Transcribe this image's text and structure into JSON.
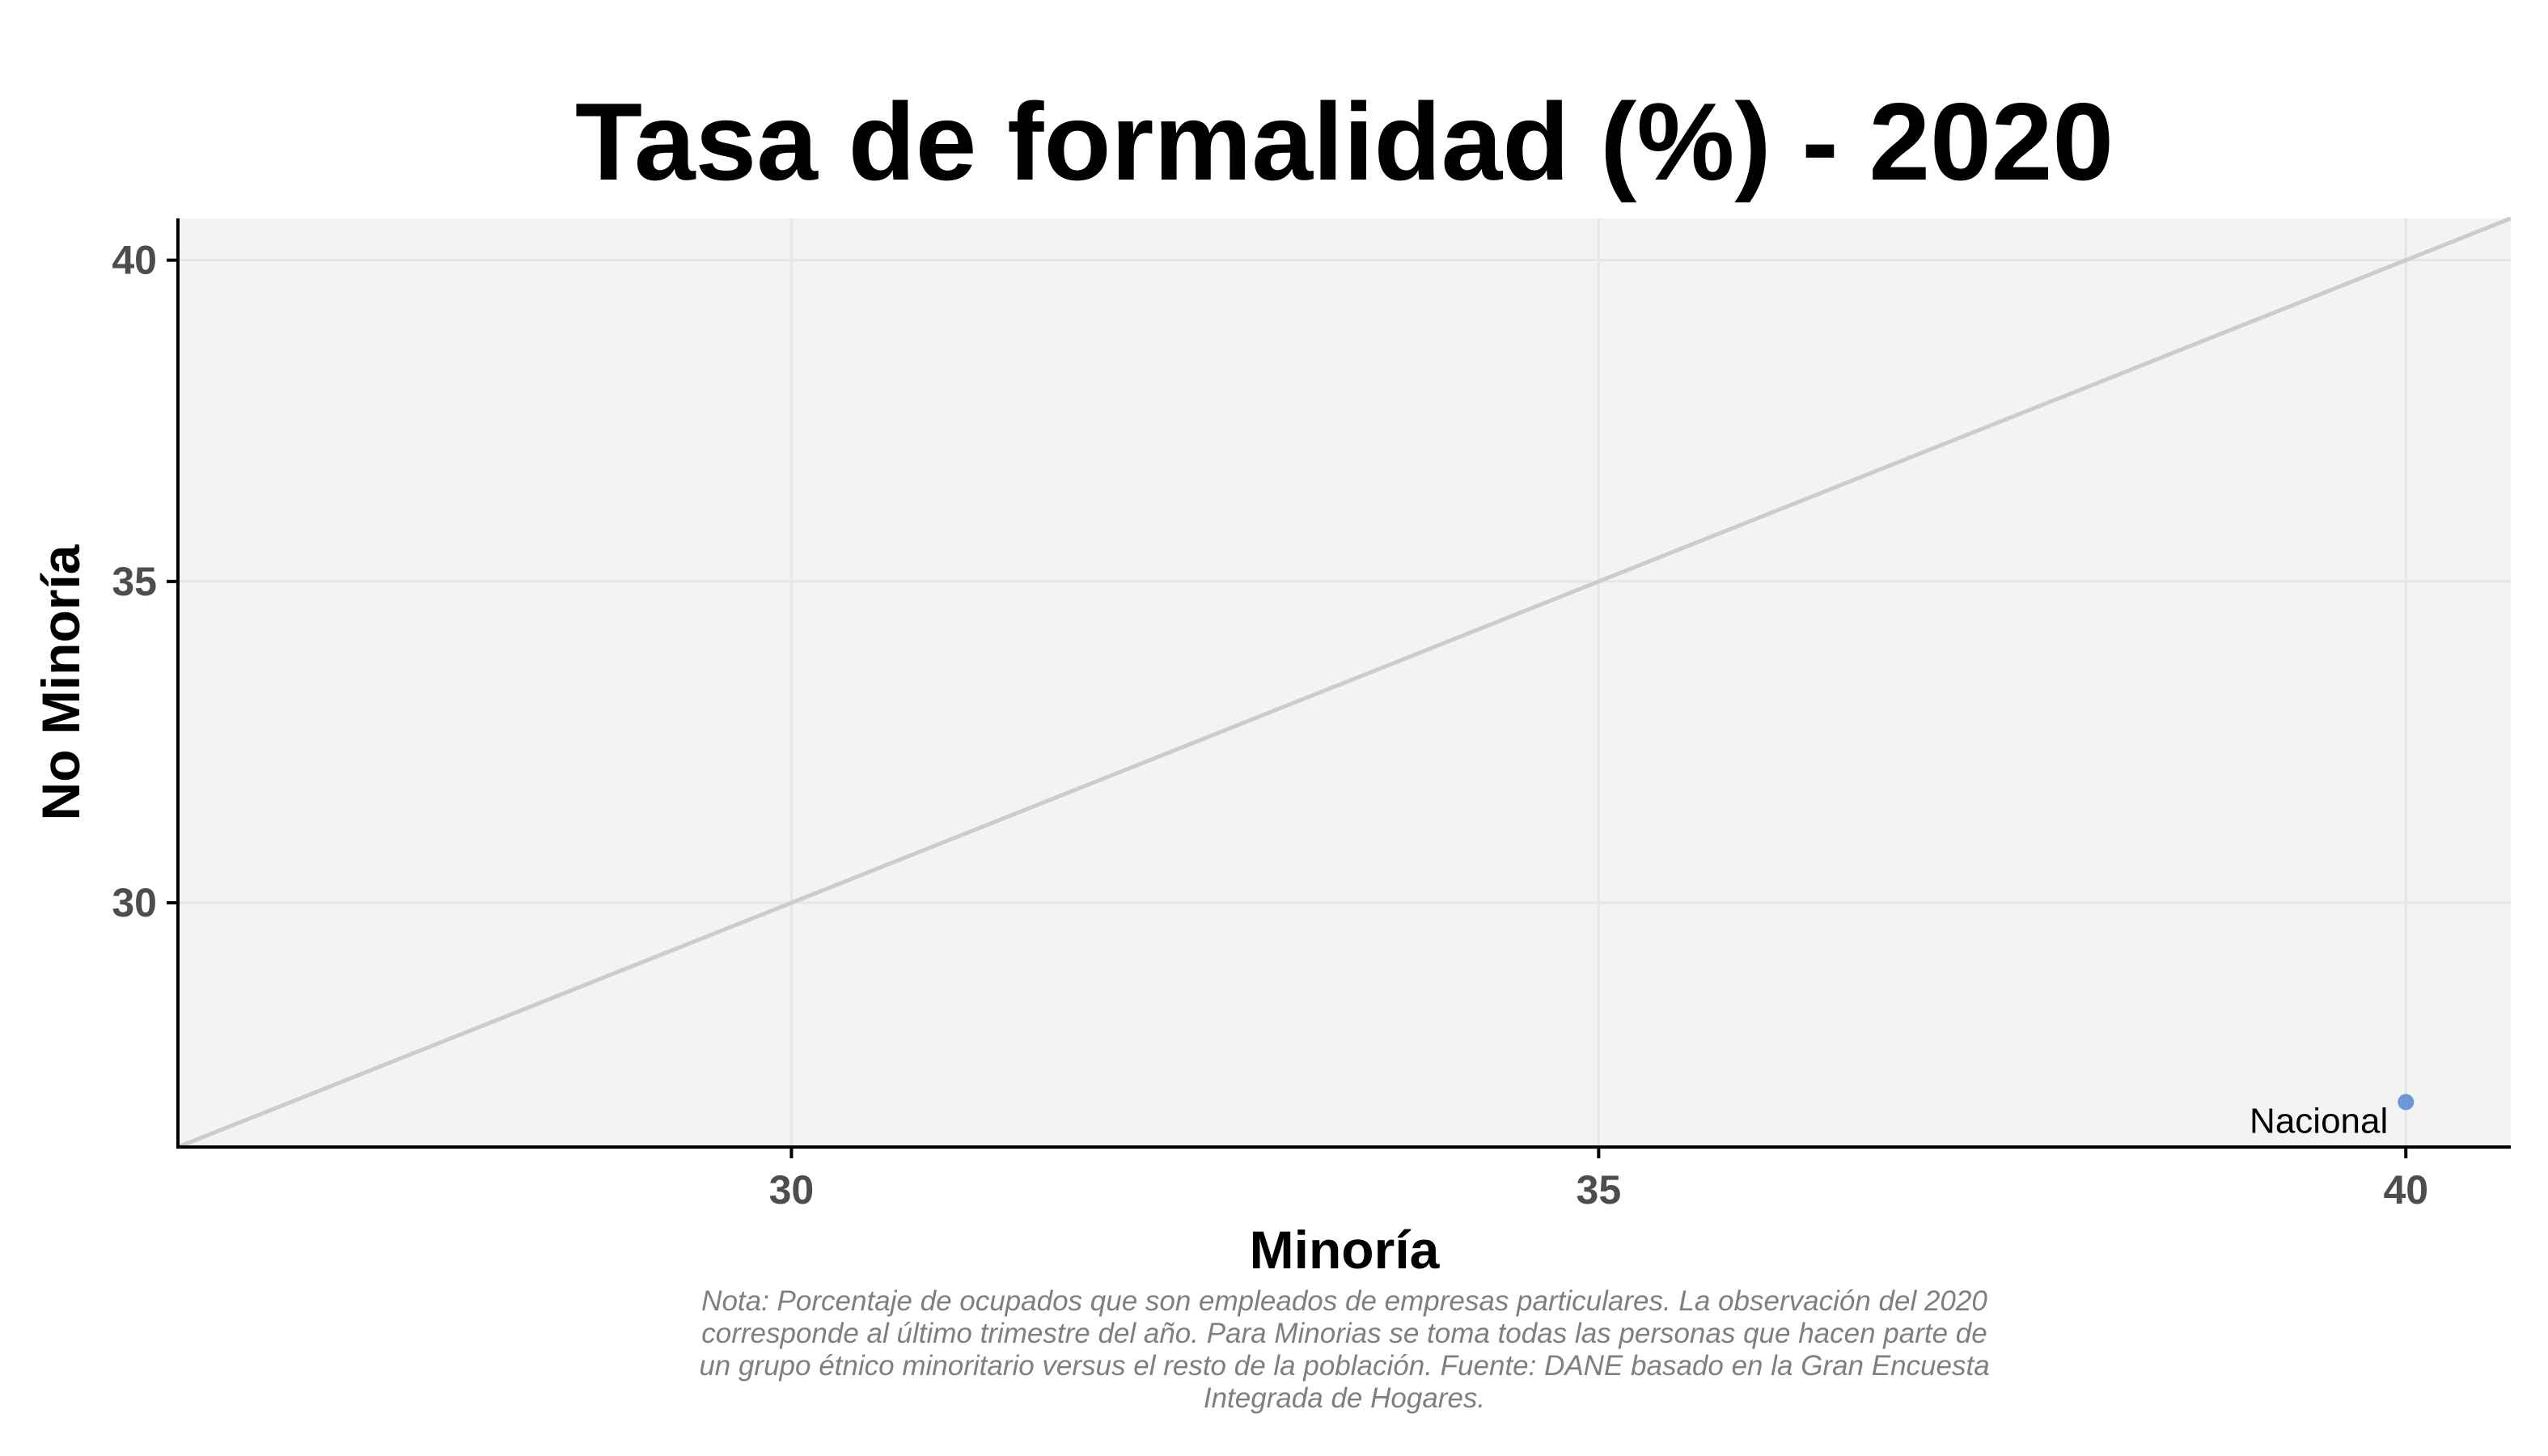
{
  "chart_data": {
    "type": "scatter",
    "title": "Tasa de formalidad (%) - 2020",
    "xlabel": "Minoría",
    "ylabel": "No Minoría",
    "xlim": [
      26.2,
      40.65
    ],
    "ylim": [
      26.2,
      40.65
    ],
    "x_ticks": [
      30,
      35,
      40
    ],
    "y_ticks": [
      30,
      35,
      40
    ],
    "grid": true,
    "reference_line": "y = x",
    "points": [
      {
        "label": "Nacional",
        "x": 40.0,
        "y": 26.9
      }
    ],
    "note": [
      "Nota: Porcentaje de ocupados que son empleados de empresas particulares. La observación del 2020",
      "corresponde al último trimestre del año. Para Minorias se toma todas las personas que hacen parte de",
      "un grupo étnico minoritario versus el resto de la población. Fuente: DANE basado en la Gran Encuesta",
      "Integrada de Hogares."
    ]
  },
  "colors": {
    "panel_background": "#f3f3f3",
    "grid": "#e6e6e6",
    "reference_line": "#cccccc",
    "point": "#6f97d6",
    "axis": "#000000",
    "tick_text": "#4d4d4d",
    "note_text": "#7f7f7f"
  }
}
